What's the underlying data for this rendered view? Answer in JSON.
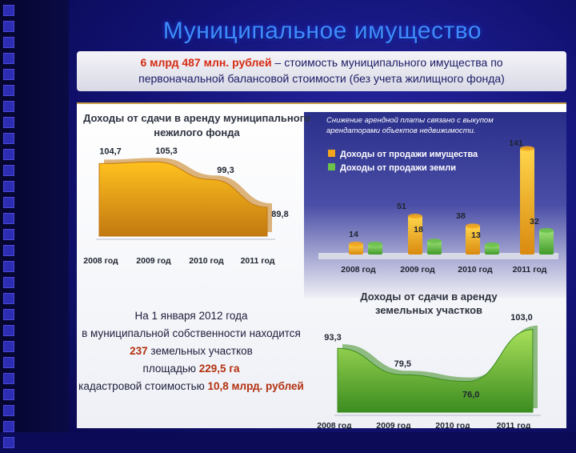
{
  "title": "Муниципальное имущество",
  "info": {
    "line1_highlight": "6 млрд 487 млн. рублей",
    "line1_rest": " – стоимость муниципального имущества по",
    "line2": "первоначальной балансовой стоимости (без учета жилищного фонда)"
  },
  "note": {
    "line1": "Снижение арендной платы связано с выкупом",
    "line2": "арендаторами объектов недвижимости."
  },
  "text_block": {
    "line1": "На 1 января 2012 года",
    "line2": "в муниципальной собственности находится",
    "line3_num": "237",
    "line3_rest": " земельных участков",
    "line4_pre": "площадью ",
    "line4_num": "229,5 га",
    "line5_pre": "кадастровой стоимостью ",
    "line5_num": "10,8 млрд. рублей"
  },
  "colors": {
    "gold": "#f2a51c",
    "green": "#6cc24a",
    "accent_red": "#d62b12"
  },
  "chart_data": [
    {
      "type": "area",
      "title_line1": "Доходы от сдачи в аренду муниципального",
      "title_line2": "нежилого фонда",
      "categories": [
        "2008 год",
        "2009 год",
        "2010 год",
        "2011 год"
      ],
      "values": [
        104.7,
        105.3,
        99.3,
        89.8
      ],
      "labels": [
        "104,7",
        "105,3",
        "99,3",
        "89,8"
      ],
      "ylim": [
        80,
        110
      ],
      "color": "#f2a51c"
    },
    {
      "type": "bar",
      "categories": [
        "2008 год",
        "2009 год",
        "2010 год",
        "2011 год"
      ],
      "series": [
        {
          "name": "Доходы от продажи имущества",
          "values": [
            14,
            51,
            38,
            141
          ],
          "labels": [
            "14",
            "51",
            "38",
            "141"
          ],
          "color": "#f2a51c"
        },
        {
          "name": "Доходы от продажи земли",
          "values": [
            14,
            18,
            13,
            32
          ],
          "labels": [
            "14",
            "18",
            "13",
            "32"
          ],
          "color": "#6cc24a"
        }
      ],
      "ylim": [
        0,
        150
      ],
      "legend": "top-right"
    },
    {
      "type": "area",
      "title_line1": "Доходы от сдачи в аренду",
      "title_line2": "земельных участков",
      "categories": [
        "2008 год",
        "2009 год",
        "2010 год",
        "2011 год"
      ],
      "values": [
        93.3,
        79.5,
        76.0,
        103.0
      ],
      "labels": [
        "93,3",
        "79,5",
        "76,0",
        "103,0"
      ],
      "ylim": [
        60,
        110
      ],
      "color": "#6cc24a"
    }
  ]
}
